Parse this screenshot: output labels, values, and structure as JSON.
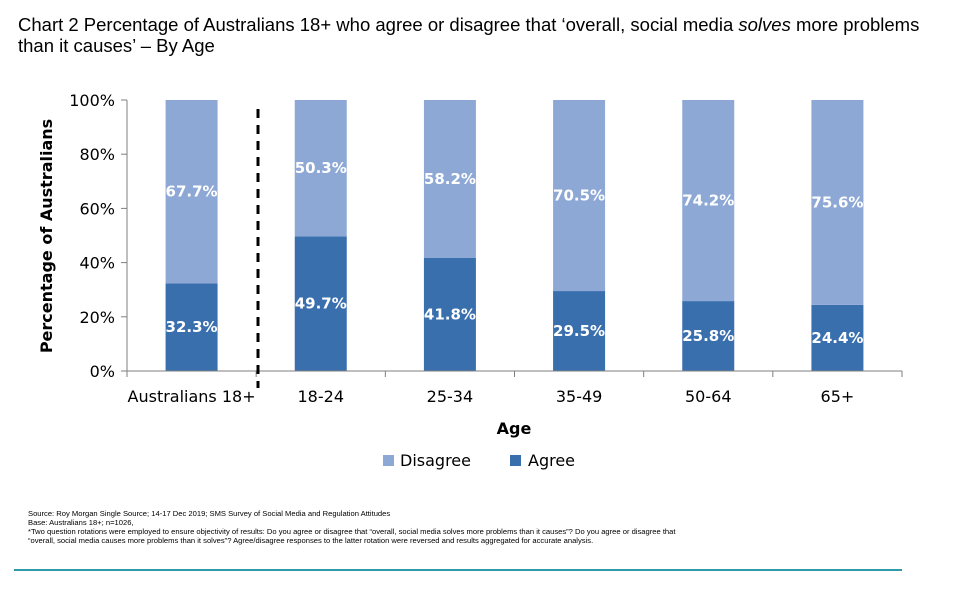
{
  "title_parts": {
    "before": "Chart 2 Percentage of Australians 18+ who agree or disagree that ‘overall, social media ",
    "emph": "solves",
    "after": " more problems than it causes’ – By Age"
  },
  "chart_data": {
    "type": "bar",
    "stacked": true,
    "percent": true,
    "categories": [
      "Australians 18+",
      "18-24",
      "25-34",
      "35-49",
      "50-64",
      "65+"
    ],
    "series": [
      {
        "name": "Agree",
        "values": [
          32.3,
          49.7,
          41.8,
          29.5,
          25.8,
          24.4
        ],
        "color": "#3a6fae"
      },
      {
        "name": "Disagree",
        "values": [
          67.7,
          50.3,
          58.2,
          70.5,
          74.2,
          75.6
        ],
        "color": "#8ea8d5"
      }
    ],
    "data_labels": {
      "Agree": [
        "32.3%",
        "49.7%",
        "41.8%",
        "29.5%",
        "25.8%",
        "24.4%"
      ],
      "Disagree": [
        "67.7%",
        "50.3%",
        "58.2%",
        "70.5%",
        "74.2%",
        "75.6%"
      ]
    },
    "xlabel": "Age",
    "ylabel": "Percentage of Australians",
    "ylim": [
      0,
      100
    ],
    "yticks": [
      "0%",
      "20%",
      "40%",
      "60%",
      "80%",
      "100%"
    ],
    "legend": {
      "placement": "bottom",
      "order": [
        "Disagree",
        "Agree"
      ]
    },
    "grid": false
  },
  "footnote": {
    "source": "Source: Roy Morgan Single Source; 14-17 Dec 2019; SMS Survey of Social Media and Regulation Attitudes",
    "base": "Base: Australians 18+; n=1026,",
    "note_line1": "*Two question rotations were employed to ensure objectivity of results: Do you agree or disagree that “overall, social media solves more problems than it causes”? Do you agree or disagree that",
    "note_line2": "“overall, social media causes more problems than it solves”? Agree/disagree responses to the latter rotation were reversed and results aggregated for accurate analysis."
  },
  "colors": {
    "agree": "#3a6fae",
    "disagree": "#8ea8d5",
    "rule": "#2e9ca6"
  }
}
